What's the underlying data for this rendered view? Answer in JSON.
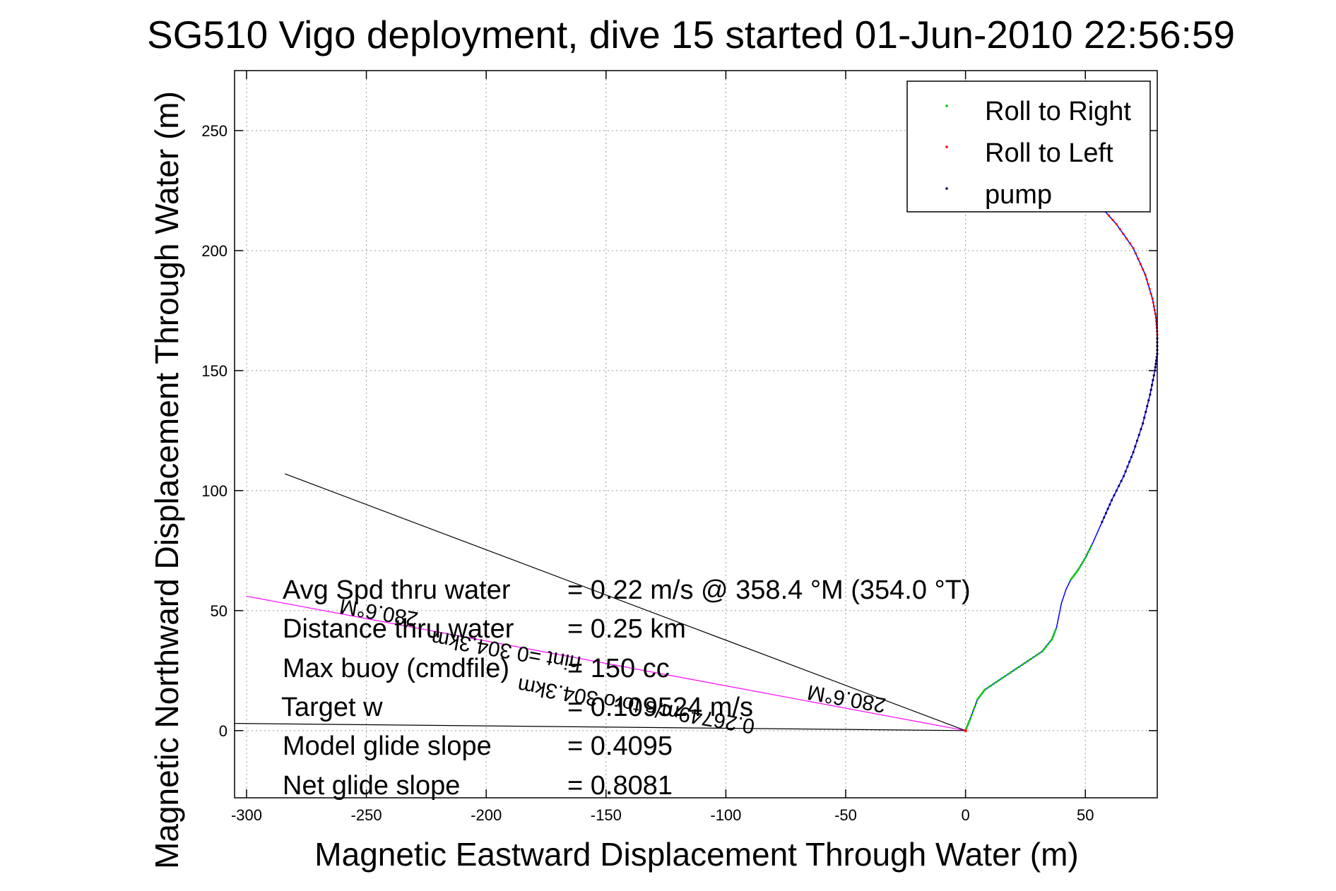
{
  "chart_data": {
    "type": "line",
    "title": "SG510 Vigo deployment, dive 15 started 01-Jun-2010 22:56:59",
    "xlabel": "Magnetic Eastward Displacement Through Water (m)",
    "ylabel": "Magnetic Northward Displacement Through Water (m)",
    "xlim": [
      -305,
      80
    ],
    "ylim": [
      -28,
      275
    ],
    "x_ticks": [
      -300,
      -250,
      -200,
      -150,
      -100,
      -50,
      0,
      50
    ],
    "y_ticks": [
      0,
      50,
      100,
      150,
      200,
      250
    ],
    "grid": true,
    "legend_position": "top-right",
    "series": [
      {
        "name": "Roll to Right",
        "color": "#00cc00"
      },
      {
        "name": "Roll to Left",
        "color": "#ff0000"
      },
      {
        "name": "pump",
        "color": "#000066"
      }
    ],
    "track": {
      "color": "#0000ff",
      "x": [
        0,
        2,
        5,
        8,
        14,
        20,
        26,
        32,
        36,
        38,
        39,
        40,
        42,
        44,
        47,
        50,
        53,
        57,
        61,
        66,
        70,
        74,
        77,
        79,
        80,
        80,
        79.5,
        78,
        75,
        70,
        63,
        55
      ],
      "y": [
        0,
        5,
        13,
        17,
        21,
        25,
        29,
        33,
        38,
        43,
        48,
        53,
        59,
        63,
        67,
        72,
        78,
        87,
        96,
        106,
        116,
        128,
        140,
        150,
        157,
        165,
        172,
        180,
        190,
        201,
        211,
        220
      ],
      "segments": [
        {
          "kind": "Roll to Right",
          "from": 0,
          "to": 9
        },
        {
          "kind": "Roll to Right",
          "from": 13,
          "to": 16
        },
        {
          "kind": "Roll to Left",
          "from": 20,
          "to": 31
        },
        {
          "kind": "pump",
          "from": 17,
          "to": 25
        }
      ]
    },
    "heading_lines": [
      {
        "color": "#000000",
        "x": [
          0,
          -284
        ],
        "y": [
          0,
          107
        ]
      },
      {
        "color": "#ff00ff",
        "x": [
          0,
          -300
        ],
        "y": [
          0,
          56
        ]
      },
      {
        "color": "#000000",
        "x": [
          0,
          -305
        ],
        "y": [
          0,
          3
        ]
      }
    ],
    "annotations": [
      {
        "label": "Avg Spd thru water",
        "value": "=  0.22 m/s @ 358.4 °M (354.0 °T)"
      },
      {
        "label": "Distance thru water",
        "value": "=  0.25 km"
      },
      {
        "label": "Max buoy (cmdfile)",
        "value": "= 150 cc"
      },
      {
        "label": "Target w",
        "value": "= 0.109524 m/s"
      },
      {
        "label": "Model glide slope",
        "value": "= 0.4095"
      },
      {
        "label": "Net glide slope",
        "value": "= 0.8081"
      }
    ],
    "rotated_labels": [
      {
        "text": "0.26749m/s toro 304.3km",
        "angle": 190
      },
      {
        "text": "280.6°M",
        "angle": 190
      },
      {
        "text": "hint =0 304.3km",
        "angle": 190
      },
      {
        "text": "280.6°M",
        "angle": 190
      }
    ]
  }
}
